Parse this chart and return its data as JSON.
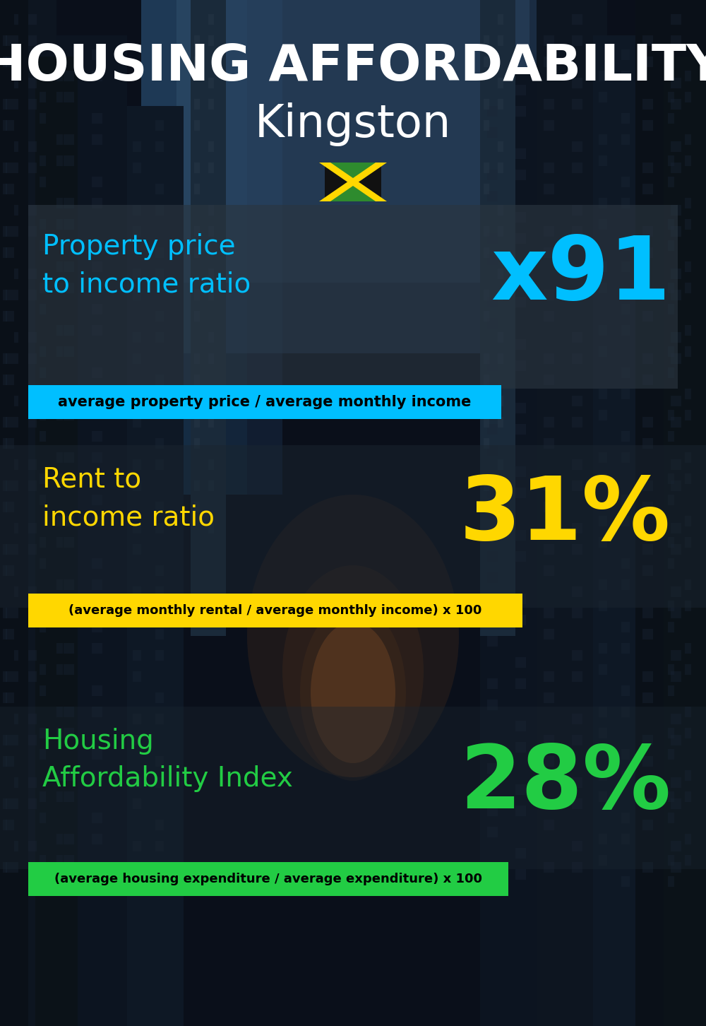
{
  "title_line1": "HOUSING AFFORDABILITY",
  "title_line2": "Kingston",
  "section1_label": "Property price\nto income ratio",
  "section1_value": "x91",
  "section1_sublabel": "average property price / average monthly income",
  "section1_label_color": "#00BFFF",
  "section1_value_color": "#00BFFF",
  "section1_bar_color": "#00BFFF",
  "section2_label": "Rent to\nincome ratio",
  "section2_value": "31%",
  "section2_sublabel": "(average monthly rental / average monthly income) x 100",
  "section2_label_color": "#FFD700",
  "section2_value_color": "#FFD700",
  "section2_bar_color": "#FFD700",
  "section3_label": "Housing\nAffordability Index",
  "section3_value": "28%",
  "section3_sublabel": "(average housing expenditure / average expenditure) x 100",
  "section3_label_color": "#22CC44",
  "section3_value_color": "#22CC44",
  "section3_bar_color": "#22CC44",
  "background_color": "#0a0f1a",
  "title_color": "#FFFFFF",
  "sublabel_text_color": "#000000",
  "flag_yellow": "#FFD700",
  "flag_green": "#2E8B2E",
  "flag_black": "#111111"
}
